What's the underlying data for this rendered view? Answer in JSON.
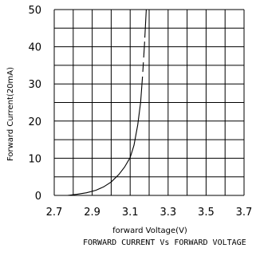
{
  "chart_data": {
    "type": "line",
    "title": "FORWARD CURRENT Vs FORWARD VOLTAGE",
    "xlabel": "forward Voltage(V)",
    "ylabel": "Forward Current(20mA)",
    "xlim": [
      2.7,
      3.7
    ],
    "ylim": [
      0,
      50
    ],
    "x_ticks": [
      "2.7",
      "2.9",
      "3.1",
      "3.3",
      "3.5",
      "3.7"
    ],
    "y_ticks": [
      "0",
      "10",
      "20",
      "30",
      "40",
      "50"
    ],
    "grid": true,
    "series": [
      {
        "x": [
          2.77,
          2.82,
          2.87,
          2.92,
          2.96,
          3.0,
          3.04,
          3.07,
          3.1,
          3.12,
          3.14,
          3.155,
          3.165,
          3.175,
          3.185
        ],
        "y": [
          0,
          0.3,
          0.7,
          1.4,
          2.3,
          3.6,
          5.6,
          7.6,
          10.2,
          13.5,
          19.0,
          25.0,
          32.0,
          40.0,
          50.0
        ]
      }
    ]
  }
}
